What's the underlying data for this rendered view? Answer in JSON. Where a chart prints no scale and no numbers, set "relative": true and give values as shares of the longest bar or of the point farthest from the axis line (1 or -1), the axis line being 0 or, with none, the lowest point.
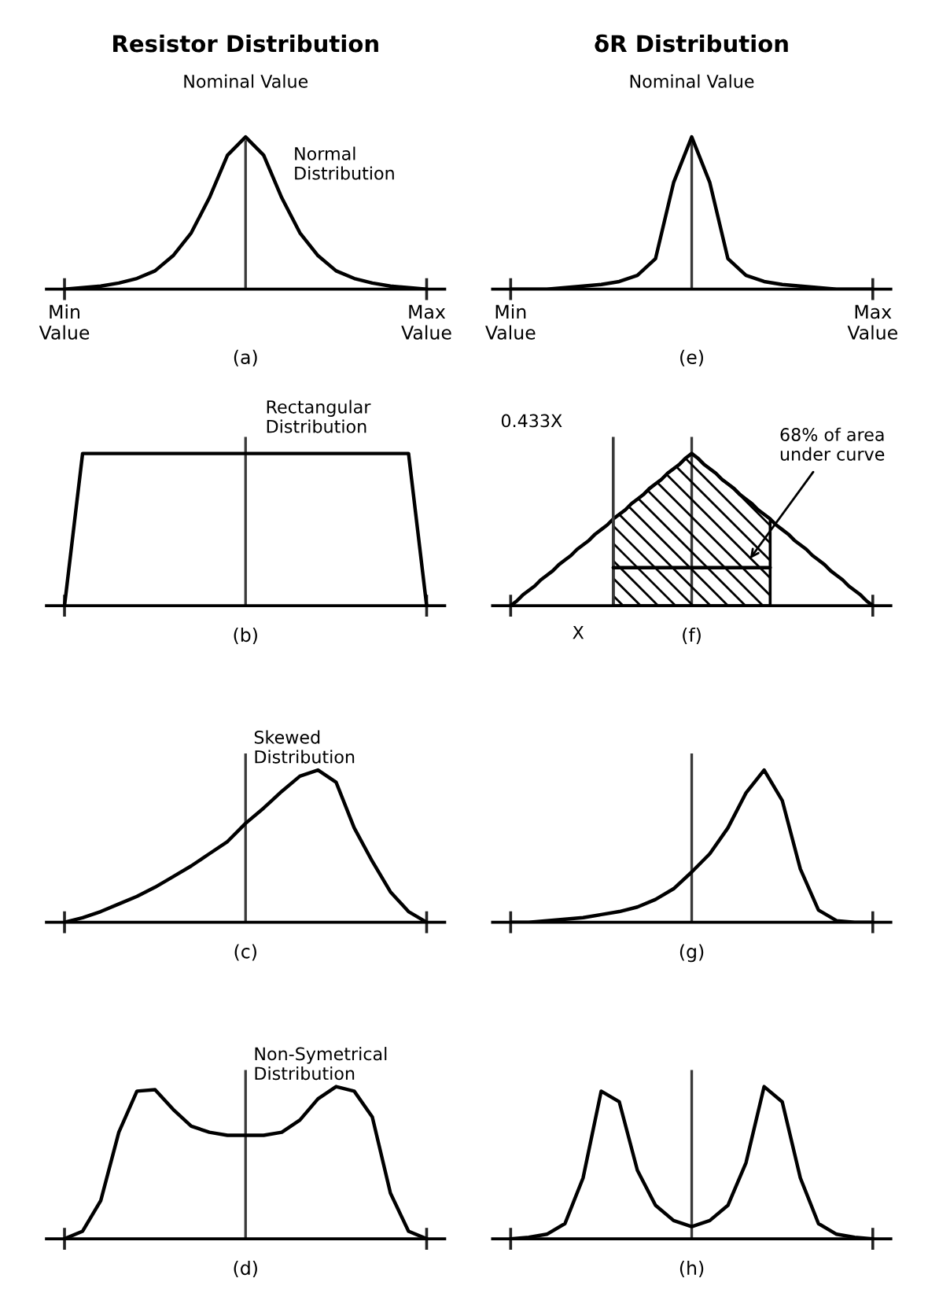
{
  "chart_data": [
    {
      "type": "line",
      "title": "Resistor Distribution",
      "xlabel": "(a)",
      "relative": true,
      "categories": [
        "Min\nValue",
        null,
        null,
        null,
        null,
        null,
        null,
        null,
        null,
        null,
        null,
        null,
        null,
        null,
        null,
        null,
        null,
        null,
        null,
        null,
        "Max\nValue"
      ],
      "series": [
        {
          "color": "#000000",
          "values": [
            0,
            0.01,
            0.02,
            0.04,
            0.07,
            0.12,
            0.22,
            0.37,
            0.6,
            0.88,
            1,
            0.88,
            0.6,
            0.37,
            0.22,
            0.12,
            0.07,
            0.04,
            0.02,
            0.01,
            0
          ]
        }
      ],
      "annotations": [
        "Nominal Value",
        "Normal\nDistribution"
      ]
    },
    {
      "type": "line",
      "title": "δR Distribution",
      "xlabel": "(e)",
      "relative": true,
      "categories": [
        "Min\nValue",
        null,
        null,
        null,
        null,
        null,
        null,
        null,
        null,
        null,
        null,
        null,
        null,
        null,
        null,
        null,
        null,
        null,
        null,
        null,
        "Max\nValue"
      ],
      "series": [
        {
          "color": "#000000",
          "values": [
            0,
            0,
            0,
            0.01,
            0.02,
            0.03,
            0.05,
            0.09,
            0.2,
            0.7,
            1,
            0.7,
            0.2,
            0.09,
            0.05,
            0.03,
            0.02,
            0.01,
            0,
            0,
            0
          ]
        }
      ],
      "annotations": [
        "Nominal Value"
      ]
    },
    {
      "type": "line",
      "xlabel": "(b)",
      "relative": true,
      "categories": [
        null,
        null,
        null,
        null,
        null,
        null,
        null,
        null,
        null,
        null,
        null,
        null,
        null,
        null,
        null,
        null,
        null,
        null,
        null,
        null,
        null
      ],
      "series": [
        {
          "color": "#000000",
          "values": [
            0,
            1,
            1,
            1,
            1,
            1,
            1,
            1,
            1,
            1,
            1,
            1,
            1,
            1,
            1,
            1,
            1,
            1,
            1,
            1,
            0
          ]
        }
      ],
      "annotations": [
        "Rectangular\nDistribution"
      ]
    },
    {
      "type": "line",
      "xlabel": "(f)",
      "relative": true,
      "categories": [
        null,
        null,
        null,
        null,
        null,
        null,
        null,
        null,
        null,
        null,
        null,
        null,
        null,
        null,
        null,
        null,
        null,
        null,
        null,
        null,
        null,
        null,
        null,
        null,
        null,
        null,
        null,
        null,
        null,
        null,
        null,
        null,
        null,
        null,
        null,
        null,
        null,
        null,
        null,
        null,
        null,
        null,
        null,
        null,
        null,
        null,
        null,
        null,
        null,
        null,
        null,
        null,
        null,
        null,
        null,
        null,
        null,
        null,
        null,
        null,
        null
      ],
      "series": [
        {
          "color": "#000000",
          "values": [
            0,
            0.03,
            0.07,
            0.1,
            0.13,
            0.17,
            0.2,
            0.23,
            0.27,
            0.3,
            0.33,
            0.37,
            0.4,
            0.43,
            0.47,
            0.5,
            0.53,
            0.57,
            0.6,
            0.63,
            0.67,
            0.7,
            0.73,
            0.77,
            0.8,
            0.83,
            0.87,
            0.9,
            0.93,
            0.97,
            1,
            0.97,
            0.93,
            0.9,
            0.87,
            0.83,
            0.8,
            0.77,
            0.73,
            0.7,
            0.67,
            0.63,
            0.6,
            0.57,
            0.53,
            0.5,
            0.47,
            0.43,
            0.4,
            0.37,
            0.33,
            0.3,
            0.27,
            0.23,
            0.2,
            0.17,
            0.13,
            0.1,
            0.07,
            0.03,
            0
          ]
        },
        {
          "type": "area",
          "color": "#000000",
          "values": [
            null,
            null,
            null,
            null,
            null,
            null,
            null,
            null,
            null,
            null,
            null,
            null,
            null,
            null,
            null,
            null,
            null,
            0.57,
            0.6,
            0.63,
            0.67,
            0.7,
            0.73,
            0.77,
            0.8,
            0.83,
            0.87,
            0.9,
            0.93,
            0.97,
            1,
            0.97,
            0.93,
            0.9,
            0.87,
            0.83,
            0.8,
            0.77,
            0.73,
            0.7,
            0.67,
            0.63,
            0.6,
            0.57,
            null,
            null,
            null,
            null,
            null,
            null,
            null,
            null,
            null,
            null,
            null,
            null,
            null,
            null,
            null,
            null,
            null
          ]
        },
        {
          "color": "#000000",
          "values": [
            null,
            null,
            null,
            null,
            null,
            null,
            null,
            null,
            null,
            null,
            null,
            null,
            null,
            null,
            null,
            null,
            null,
            0.25,
            0.25,
            0.25,
            0.25,
            0.25,
            0.25,
            0.25,
            0.25,
            0.25,
            0.25,
            0.25,
            0.25,
            0.25,
            0.25,
            0.25,
            0.25,
            0.25,
            0.25,
            0.25,
            0.25,
            0.25,
            0.25,
            0.25,
            0.25,
            0.25,
            0.25,
            0.25,
            null,
            null,
            null,
            null,
            null,
            null,
            null,
            null,
            null,
            null,
            null,
            null,
            null,
            null,
            null,
            null,
            null
          ]
        }
      ],
      "annotations": [
        "0.433X",
        "68% of area\nunder curve",
        "X"
      ]
    },
    {
      "type": "line",
      "xlabel": "(c)",
      "relative": true,
      "categories": [
        null,
        null,
        null,
        null,
        null,
        null,
        null,
        null,
        null,
        null,
        null,
        null,
        null,
        null,
        null,
        null,
        null,
        null,
        null,
        null,
        null
      ],
      "series": [
        {
          "color": "#000000",
          "values": [
            0,
            0.03,
            0.07,
            0.12,
            0.17,
            0.23,
            0.3,
            0.37,
            0.45,
            0.53,
            0.65,
            0.75,
            0.86,
            0.96,
            1,
            0.92,
            0.62,
            0.4,
            0.2,
            0.07,
            0
          ]
        }
      ],
      "annotations": [
        "Skewed\nDistribution"
      ]
    },
    {
      "type": "line",
      "xlabel": "(g)",
      "relative": true,
      "categories": [
        null,
        null,
        null,
        null,
        null,
        null,
        null,
        null,
        null,
        null,
        null,
        null,
        null,
        null,
        null,
        null,
        null,
        null,
        null,
        null,
        null
      ],
      "series": [
        {
          "color": "#000000",
          "values": [
            0,
            0,
            0.01,
            0.02,
            0.03,
            0.05,
            0.07,
            0.1,
            0.15,
            0.22,
            0.33,
            0.45,
            0.62,
            0.85,
            1,
            0.8,
            0.35,
            0.08,
            0.01,
            0,
            0
          ]
        }
      ]
    },
    {
      "type": "line",
      "xlabel": "(d)",
      "relative": true,
      "categories": [
        null,
        null,
        null,
        null,
        null,
        null,
        null,
        null,
        null,
        null,
        null,
        null,
        null,
        null,
        null,
        null,
        null,
        null,
        null,
        null,
        null
      ],
      "series": [
        {
          "color": "#000000",
          "values": [
            0,
            0.05,
            0.25,
            0.7,
            0.97,
            0.98,
            0.85,
            0.74,
            0.7,
            0.68,
            0.68,
            0.68,
            0.7,
            0.78,
            0.92,
            1,
            0.97,
            0.8,
            0.3,
            0.05,
            0
          ]
        }
      ],
      "annotations": [
        "Non-Symetrical\nDistribution"
      ]
    },
    {
      "type": "line",
      "xlabel": "(h)",
      "relative": true,
      "categories": [
        null,
        null,
        null,
        null,
        null,
        null,
        null,
        null,
        null,
        null,
        null,
        null,
        null,
        null,
        null,
        null,
        null,
        null,
        null,
        null,
        null
      ],
      "series": [
        {
          "color": "#000000",
          "values": [
            0,
            0.01,
            0.03,
            0.1,
            0.4,
            0.97,
            0.9,
            0.45,
            0.22,
            0.12,
            0.08,
            0.12,
            0.22,
            0.5,
            1,
            0.9,
            0.4,
            0.1,
            0.03,
            0.01,
            0
          ]
        }
      ]
    }
  ]
}
